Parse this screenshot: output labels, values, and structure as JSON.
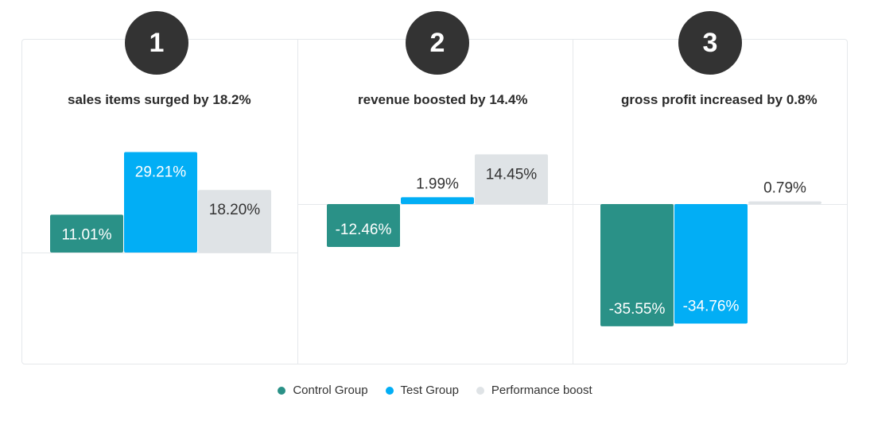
{
  "colors": {
    "control": "#2a9187",
    "test": "#02aef5",
    "boost": "#dfe3e6"
  },
  "panels": [
    {
      "badge": "1",
      "title": "sales items surged by 18.2%"
    },
    {
      "badge": "2",
      "title": "revenue boosted by 14.4%"
    },
    {
      "badge": "3",
      "title": "gross profit increased by 0.8%"
    }
  ],
  "legend": [
    {
      "label": "Control Group",
      "color": "#2a9187"
    },
    {
      "label": "Test Group",
      "color": "#02aef5"
    },
    {
      "label": "Performance boost",
      "color": "#dfe3e6"
    }
  ],
  "chart_data": [
    {
      "type": "bar",
      "title": "sales items surged by 18.2%",
      "series": [
        {
          "name": "Control Group",
          "value": 11.01,
          "label": "11.01%"
        },
        {
          "name": "Test Group",
          "value": 29.21,
          "label": "29.21%"
        },
        {
          "name": "Performance boost",
          "value": 18.2,
          "label": "18.20%"
        }
      ]
    },
    {
      "type": "bar",
      "title": "revenue boosted by 14.4%",
      "series": [
        {
          "name": "Control Group",
          "value": -12.46,
          "label": "-12.46%"
        },
        {
          "name": "Test Group",
          "value": 1.99,
          "label": "1.99%"
        },
        {
          "name": "Performance boost",
          "value": 14.45,
          "label": "14.45%"
        }
      ]
    },
    {
      "type": "bar",
      "title": "gross profit increased by 0.8%",
      "series": [
        {
          "name": "Control Group",
          "value": -35.55,
          "label": "-35.55%"
        },
        {
          "name": "Test Group",
          "value": -34.76,
          "label": "-34.76%"
        },
        {
          "name": "Performance boost",
          "value": 0.79,
          "label": "0.79%"
        }
      ]
    }
  ]
}
